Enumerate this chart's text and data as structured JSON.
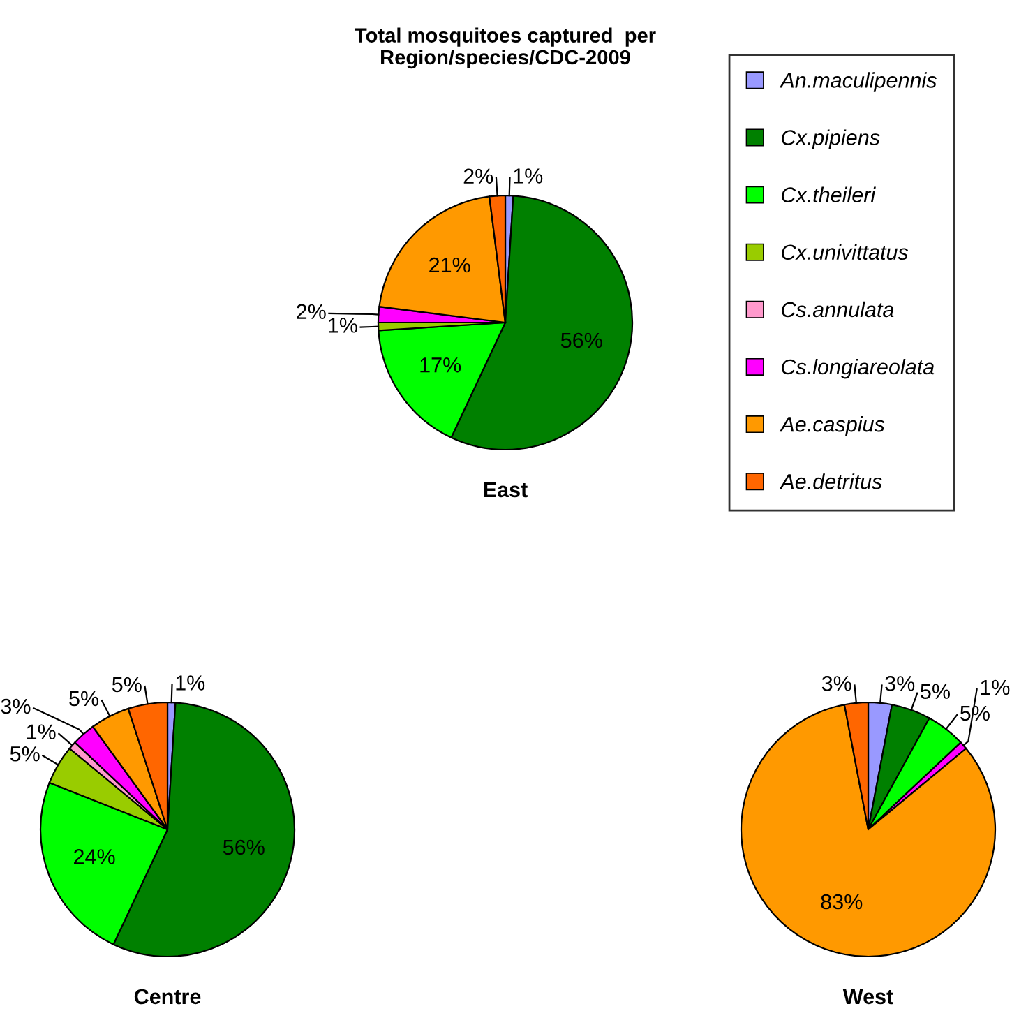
{
  "chart_data": [
    {
      "type": "pie",
      "title": "Total mosquitoes captured  per\nRegion/species/CDC-2009",
      "xlabel": "East",
      "legend": "right",
      "categories": [
        "An.maculipennis",
        "Cx.pipiens",
        "Cx.theileri",
        "Cx.univittatus",
        "Cs.annulata",
        "Cs.longiareolata",
        "Ae.caspius",
        "Ae.detritus"
      ],
      "colors": [
        "#9999ff",
        "#008000",
        "#00ff00",
        "#99cc00",
        "#ff99cc",
        "#ff00ff",
        "#ff9900",
        "#ff6600"
      ],
      "values": [
        1,
        56,
        17,
        1,
        null,
        2,
        21,
        2
      ],
      "value_labels": [
        "1%",
        "56%",
        "17%",
        "1%",
        null,
        "2%",
        "21%",
        "2%"
      ]
    },
    {
      "type": "pie",
      "xlabel": "Centre",
      "colors": [
        "#9999ff",
        "#008000",
        "#00ff00",
        "#99cc00",
        "#ff99cc",
        "#ff00ff",
        "#ff9900",
        "#ff6600"
      ],
      "values": [
        1,
        56,
        24,
        5,
        1,
        3,
        5,
        5
      ],
      "value_labels": [
        "1%",
        "56%",
        "24%",
        "5%",
        "1%",
        "3%",
        "5%",
        "5%"
      ]
    },
    {
      "type": "pie",
      "xlabel": "West",
      "colors": [
        "#9999ff",
        "#008000",
        "#00ff00",
        "#99cc00",
        "#ff99cc",
        "#ff00ff",
        "#ff9900",
        "#ff6600"
      ],
      "values": [
        3,
        5,
        5,
        null,
        null,
        1,
        83,
        3
      ],
      "value_labels": [
        "3%",
        "5%",
        "5%",
        null,
        null,
        "1%",
        "83%",
        "3%"
      ]
    }
  ]
}
